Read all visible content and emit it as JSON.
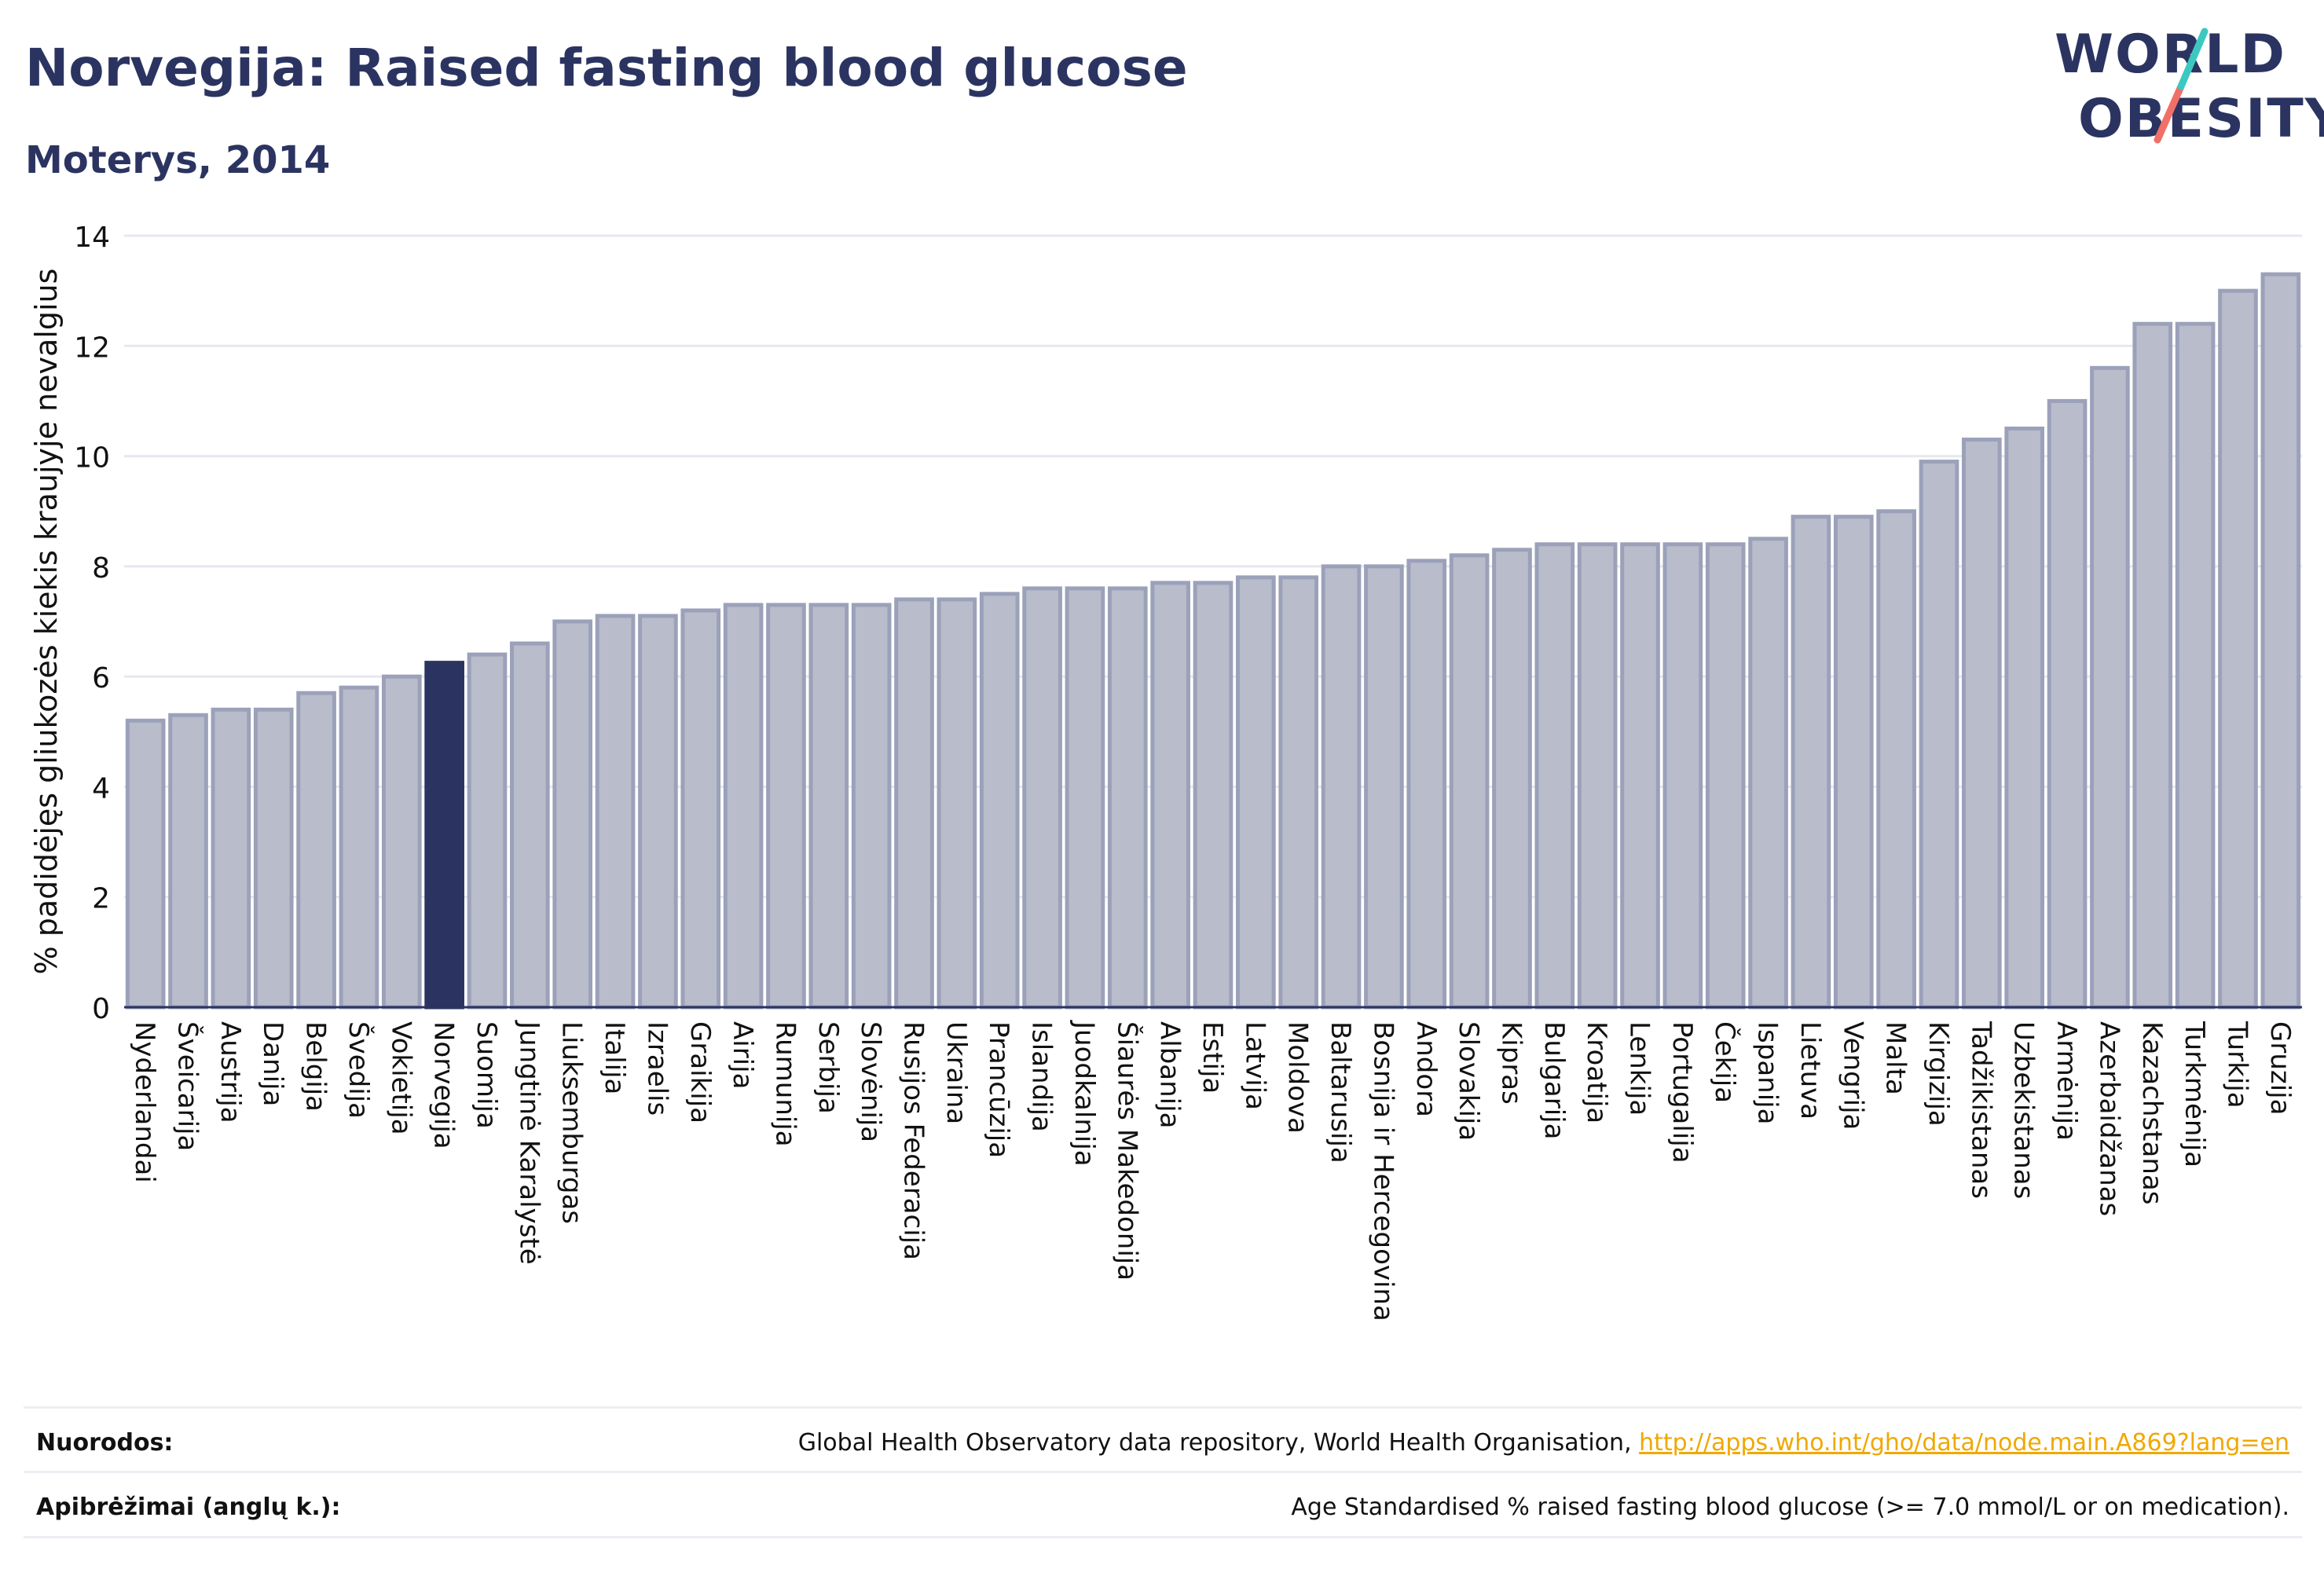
{
  "header": {
    "title": "Norvegija: Raised fasting blood glucose",
    "subtitle": "Moterys, 2014"
  },
  "logo": {
    "line1": "WORLD",
    "line2": "OBESITY",
    "accent_teal": "#3cc8c0",
    "accent_coral": "#f07068"
  },
  "colors": {
    "bar": "#b8bccb",
    "bar_border": "#9ca1ba",
    "highlight": "#2b3461",
    "text": "#2b3461",
    "grid": "#e6e8ef"
  },
  "chart_data": {
    "type": "bar",
    "ylabel": "% padidėjęs gliukozės kiekis kraujyje nevalgius",
    "ylim": [
      0,
      14
    ],
    "yticks": [
      0,
      2,
      4,
      6,
      8,
      10,
      12,
      14
    ],
    "highlight": "Norvegija",
    "grid": true,
    "categories": [
      "Nyderlandai",
      "Šveicarija",
      "Austrija",
      "Danija",
      "Belgija",
      "Švedija",
      "Vokietija",
      "Norvegija",
      "Suomija",
      "Jungtinė Karalystė",
      "Liuksemburgas",
      "Italija",
      "Izraelis",
      "Graikija",
      "Airija",
      "Rumunija",
      "Serbija",
      "Slovėnija",
      "Rusijos Federacija",
      "Ukraina",
      "Prancūzija",
      "Islandija",
      "Juodkalnija",
      "Šiaurės Makedonija",
      "Albanija",
      "Estija",
      "Latvija",
      "Moldova",
      "Baltarusija",
      "Bosnija ir Hercegovina",
      "Andora",
      "Slovakija",
      "Kipras",
      "Bulgarija",
      "Kroatija",
      "Lenkija",
      "Portugalija",
      "Čekija",
      "Ispanija",
      "Lietuva",
      "Vengrija",
      "Malta",
      "Kirgizija",
      "Tadžikistanas",
      "Uzbekistanas",
      "Armėnija",
      "Azerbaidžanas",
      "Kazachstanas",
      "Turkmėnija",
      "Turkija",
      "Gruzija"
    ],
    "values": [
      5.2,
      5.3,
      5.4,
      5.4,
      5.7,
      5.8,
      6.0,
      6.25,
      6.4,
      6.6,
      7.0,
      7.1,
      7.1,
      7.2,
      7.3,
      7.3,
      7.3,
      7.3,
      7.4,
      7.4,
      7.5,
      7.6,
      7.6,
      7.6,
      7.7,
      7.7,
      7.8,
      7.8,
      8.0,
      8.0,
      8.1,
      8.2,
      8.3,
      8.4,
      8.4,
      8.4,
      8.4,
      8.4,
      8.5,
      8.9,
      8.9,
      9.0,
      9.9,
      10.3,
      10.5,
      11.0,
      11.6,
      12.4,
      12.4,
      13.0,
      13.3
    ]
  },
  "footer": {
    "sources_label": "Nuorodos:",
    "sources_text": "Global Health Observatory data repository, World Health Organisation, ",
    "sources_link": "http://apps.who.int/gho/data/node.main.A869?lang=en",
    "definitions_label": "Apibrėžimai (anglų k.):",
    "definitions_text": "Age Standardised % raised fasting blood glucose (>= 7.0 mmol/L or on medication)."
  }
}
